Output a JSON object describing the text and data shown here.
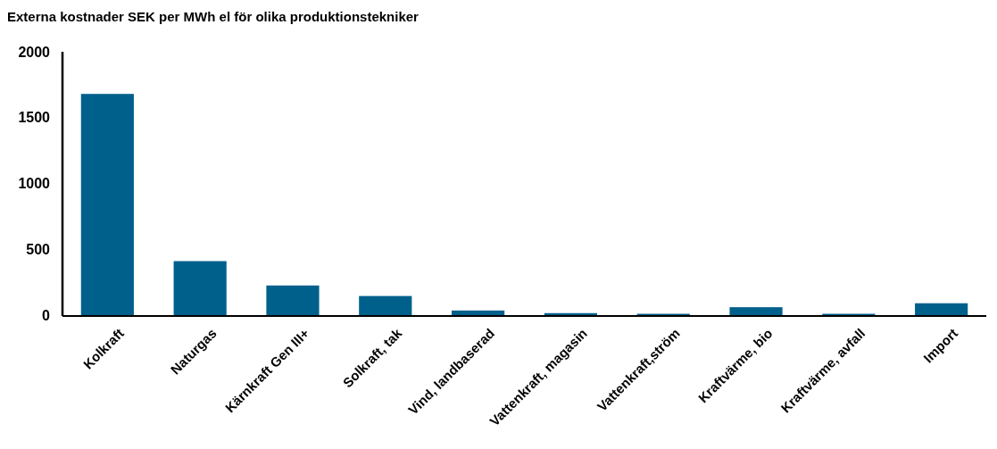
{
  "chart_data": {
    "type": "bar",
    "title": "Externa kostnader SEK per MWh el för olika produktionstekniker",
    "categories": [
      "Kolkraft",
      "Naturgas",
      "Kärnkraft Gen III+",
      "Solkraft, tak",
      "Vind, landbaserad",
      "Vattenkraft, magasin",
      "Vattenkraft,ström",
      "Kraftvärme, bio",
      "Kraftvärme, avfall",
      "Import"
    ],
    "values": [
      1680,
      410,
      225,
      145,
      35,
      15,
      10,
      60,
      10,
      90
    ],
    "color": "#00608c",
    "ylim": [
      0,
      2000
    ],
    "yticks": [
      0,
      500,
      1000,
      1500,
      2000
    ],
    "grid": false
  }
}
